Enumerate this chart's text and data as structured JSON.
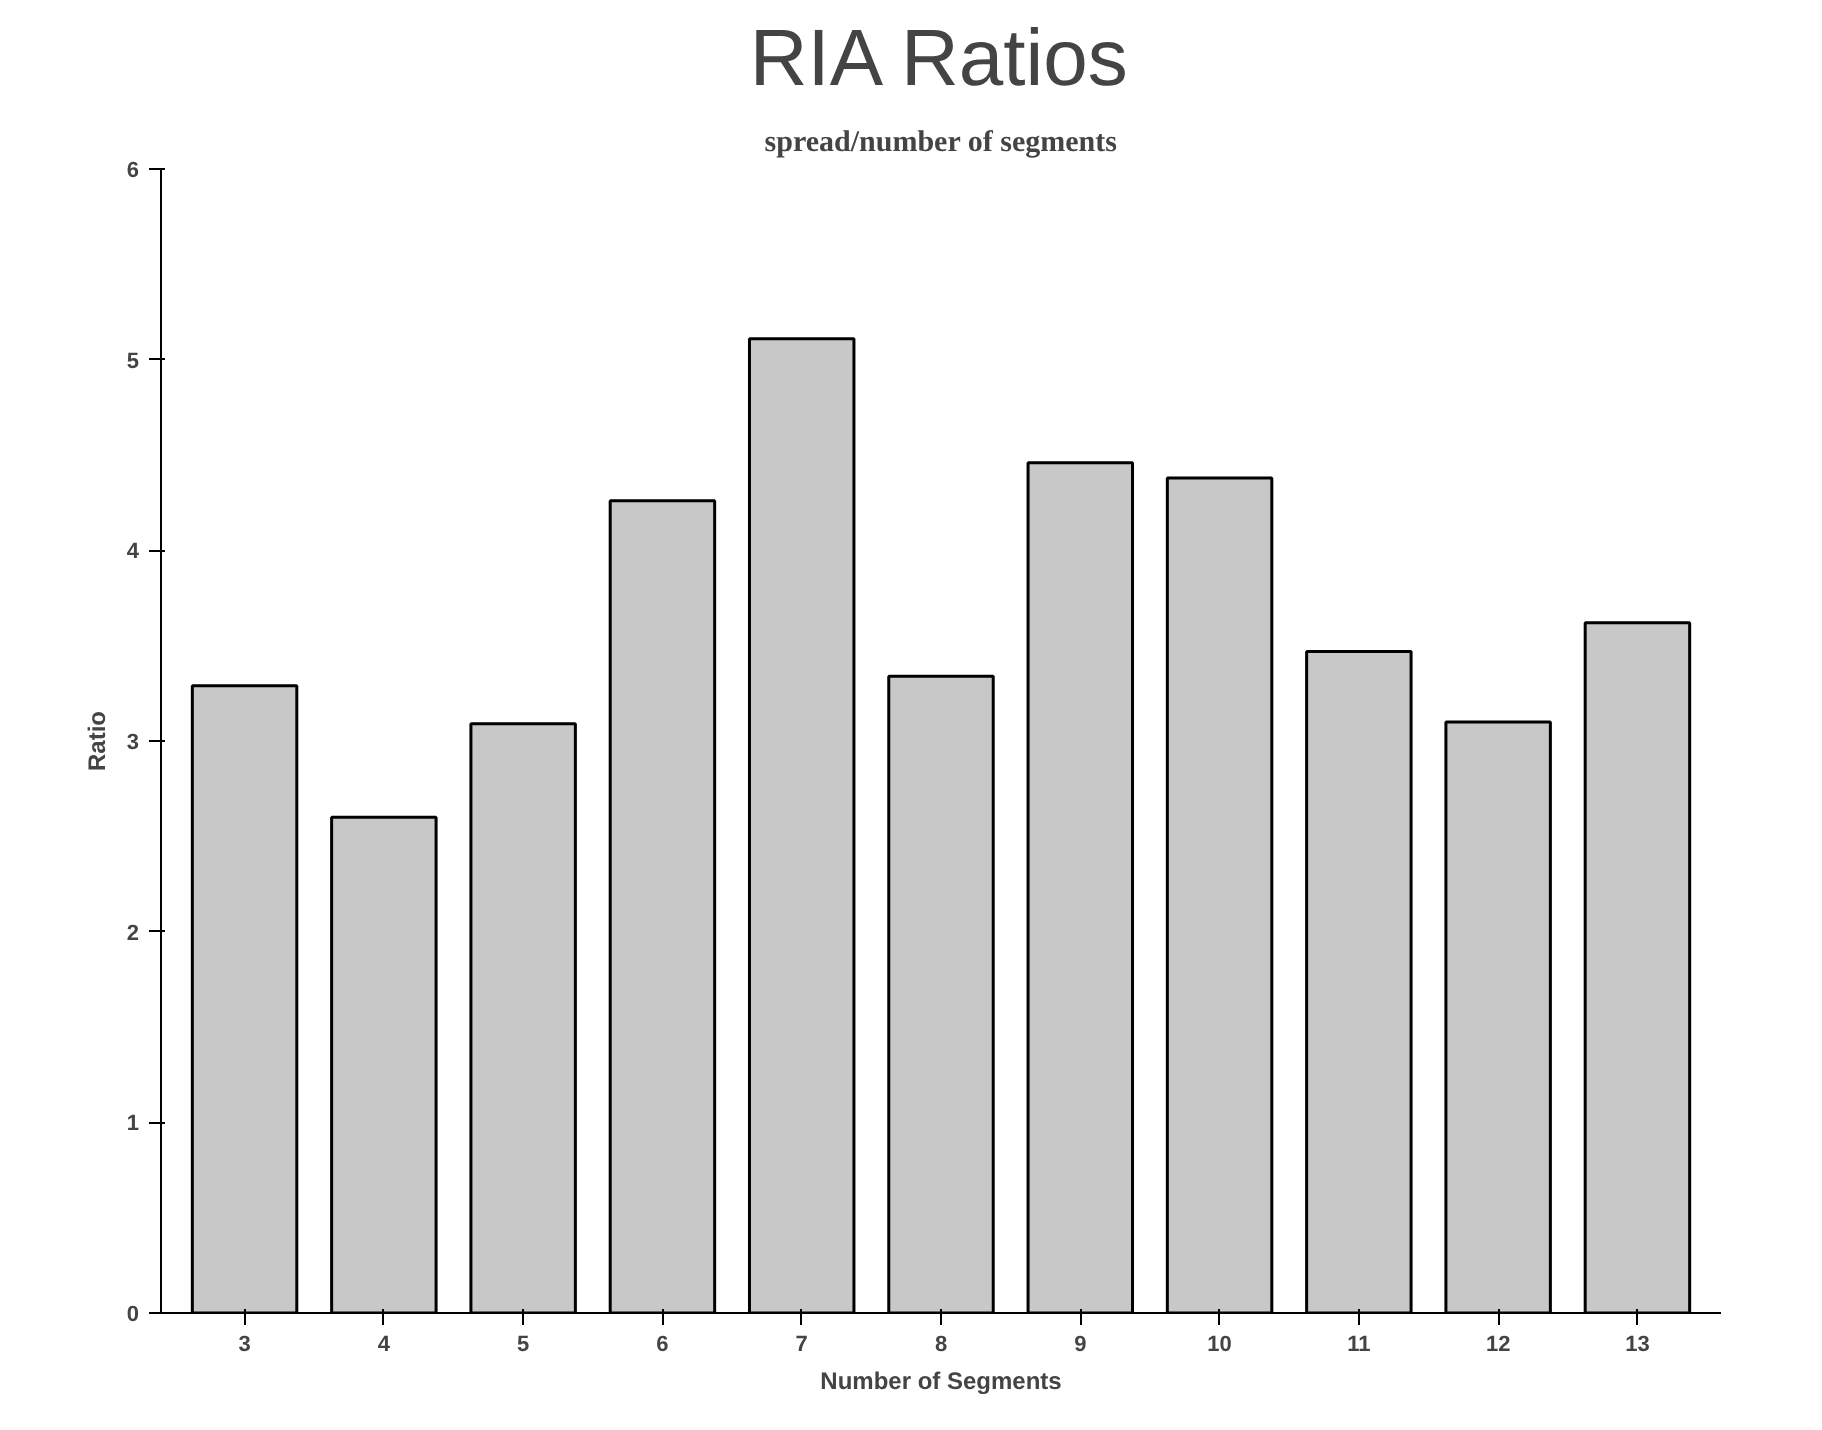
{
  "chart_data": {
    "type": "bar",
    "title": "RIA Ratios",
    "subtitle": "spread/number of segments",
    "xlabel": "Number of Segments",
    "ylabel": "Ratio",
    "categories": [
      "3",
      "4",
      "5",
      "6",
      "7",
      "8",
      "9",
      "10",
      "11",
      "12",
      "13"
    ],
    "values": [
      3.29,
      2.6,
      3.09,
      4.26,
      5.11,
      3.34,
      4.46,
      4.38,
      3.47,
      3.1,
      3.62
    ],
    "color": "#c8c8c8",
    "ylim": [
      0,
      6
    ],
    "yticks": [
      0,
      1,
      2,
      3,
      4,
      5,
      6
    ],
    "grid": false
  }
}
